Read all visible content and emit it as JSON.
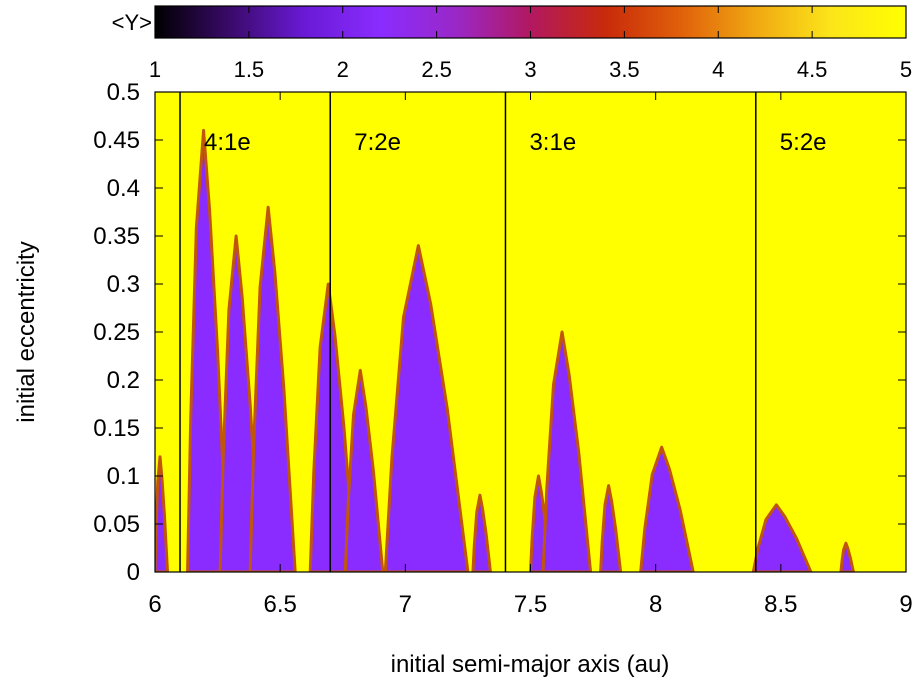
{
  "chart_data": {
    "type": "heatmap",
    "title": "",
    "xlabel": "initial semi-major axis (au)",
    "ylabel": "initial eccentricity",
    "xlim": [
      6,
      9
    ],
    "ylim": [
      0,
      0.5
    ],
    "x_ticks": [
      {
        "value": 6,
        "label": "6"
      },
      {
        "value": 6.5,
        "label": "6.5"
      },
      {
        "value": 7,
        "label": "7"
      },
      {
        "value": 7.5,
        "label": "7.5"
      },
      {
        "value": 8,
        "label": "8"
      },
      {
        "value": 8.5,
        "label": "8.5"
      },
      {
        "value": 9,
        "label": "9"
      }
    ],
    "y_ticks": [
      {
        "value": 0,
        "label": "0"
      },
      {
        "value": 0.05,
        "label": "0.05"
      },
      {
        "value": 0.1,
        "label": "0.1"
      },
      {
        "value": 0.15,
        "label": "0.15"
      },
      {
        "value": 0.2,
        "label": "0.2"
      },
      {
        "value": 0.25,
        "label": "0.25"
      },
      {
        "value": 0.3,
        "label": "0.3"
      },
      {
        "value": 0.35,
        "label": "0.35"
      },
      {
        "value": 0.4,
        "label": "0.4"
      },
      {
        "value": 0.45,
        "label": "0.45"
      },
      {
        "value": 0.5,
        "label": "0.5"
      }
    ],
    "colorbar": {
      "label": "<Y>",
      "range": [
        1,
        5
      ],
      "ticks": [
        {
          "value": 1,
          "label": "1"
        },
        {
          "value": 1.5,
          "label": "1.5"
        },
        {
          "value": 2,
          "label": "2"
        },
        {
          "value": 2.5,
          "label": "2.5"
        },
        {
          "value": 3,
          "label": "3"
        },
        {
          "value": 3.5,
          "label": "3.5"
        },
        {
          "value": 4,
          "label": "4"
        },
        {
          "value": 4.5,
          "label": "4.5"
        },
        {
          "value": 5,
          "label": "5"
        }
      ],
      "colors": [
        "#000000",
        "#3a0a6a",
        "#6a1ad6",
        "#8a2cff",
        "#9a28c8",
        "#b21860",
        "#c82a0a",
        "#e0600a",
        "#f0a812",
        "#fce51a",
        "#ffff00"
      ],
      "position": "top"
    },
    "background_value": 5,
    "background_color": "#ffff00",
    "resonance_lines": [
      {
        "a": 6.1,
        "label": "4:1e"
      },
      {
        "a": 6.7,
        "label": "7:2e"
      },
      {
        "a": 7.4,
        "label": "3:1e"
      },
      {
        "a": 8.4,
        "label": "5:2e"
      }
    ],
    "chaotic_color": "#8a2cff",
    "edge_color": "#c0560a",
    "chaotic_regions": [
      {
        "a_min": 6.0,
        "a_max": 6.05,
        "e_max": 0.12
      },
      {
        "a_min": 6.13,
        "a_max": 6.29,
        "e_max": 0.46
      },
      {
        "a_min": 6.26,
        "a_max": 6.42,
        "e_max": 0.35
      },
      {
        "a_min": 6.38,
        "a_max": 6.56,
        "e_max": 0.38
      },
      {
        "a_min": 6.62,
        "a_max": 6.8,
        "e_max": 0.3
      },
      {
        "a_min": 6.76,
        "a_max": 6.91,
        "e_max": 0.21
      },
      {
        "a_min": 6.92,
        "a_max": 7.25,
        "e_max": 0.34
      },
      {
        "a_min": 7.27,
        "a_max": 7.34,
        "e_max": 0.08
      },
      {
        "a_min": 7.5,
        "a_max": 7.58,
        "e_max": 0.1
      },
      {
        "a_min": 7.55,
        "a_max": 7.74,
        "e_max": 0.25
      },
      {
        "a_min": 7.78,
        "a_max": 7.86,
        "e_max": 0.09
      },
      {
        "a_min": 7.94,
        "a_max": 8.15,
        "e_max": 0.13
      },
      {
        "a_min": 8.39,
        "a_max": 8.62,
        "e_max": 0.07
      },
      {
        "a_min": 8.74,
        "a_max": 8.79,
        "e_max": 0.03
      }
    ]
  }
}
